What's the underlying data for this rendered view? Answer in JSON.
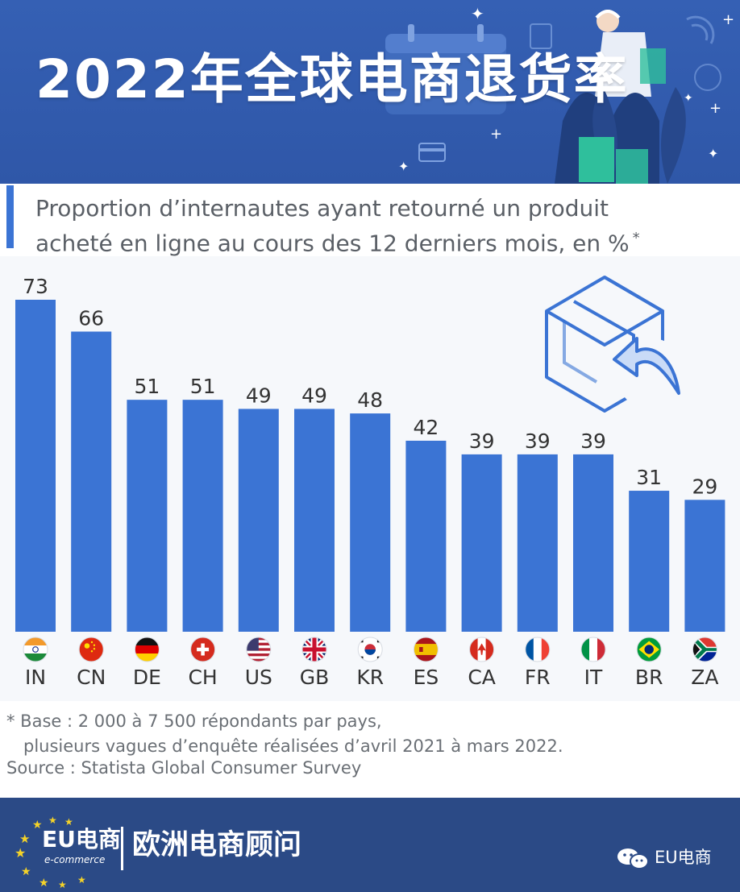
{
  "header": {
    "title": "2022年全球电商退货率"
  },
  "subtitle": {
    "line1": "Proportion d’internautes ayant retourné un produit",
    "line2": "acheté en ligne au cours des 12 derniers mois, en %",
    "marker": "*"
  },
  "chart_data": {
    "type": "bar",
    "categories": [
      "IN",
      "CN",
      "DE",
      "CH",
      "US",
      "GB",
      "KR",
      "ES",
      "CA",
      "FR",
      "IT",
      "BR",
      "ZA"
    ],
    "values": [
      73,
      66,
      51,
      51,
      49,
      49,
      48,
      42,
      39,
      39,
      39,
      31,
      29
    ],
    "ylim": [
      0,
      73
    ],
    "grid": false,
    "bar_color": "#3b74d4"
  },
  "notes": {
    "line1": "* Base : 2 000 à 7 500 répondants par pays,",
    "line2": "plusieurs vagues d’enquête réalisées d’avril 2021 à mars 2022.",
    "source": "Source : Statista Global Consumer Survey"
  },
  "footer": {
    "logo_text": "EU电商",
    "logo_subtext": "e-commerce",
    "title": "欧洲电商顾问",
    "wechat_icon": "wechat-icon",
    "wechat_label": "EU电商"
  },
  "colors": {
    "header_bg": "#3560b4",
    "footer_bg": "#2b4a86",
    "bar": "#3b74d4",
    "plot_bg": "#f6f8fb"
  }
}
